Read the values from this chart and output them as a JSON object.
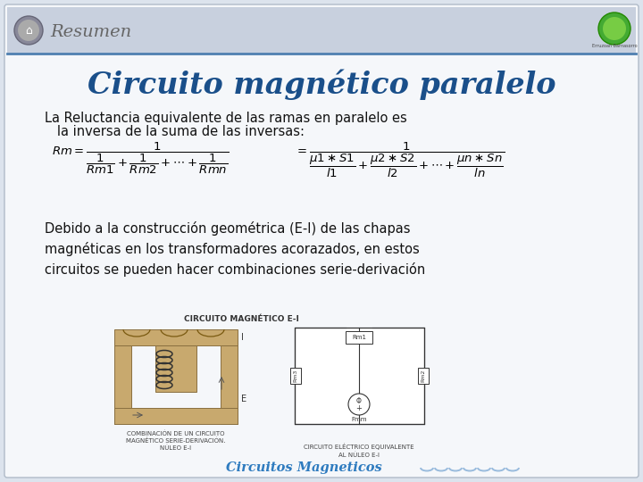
{
  "bg_color": "#dce3ed",
  "slide_bg": "#f5f7fa",
  "title": "Circuito magnético paralelo",
  "title_color": "#1a4f8a",
  "header_text": "Resumen",
  "header_color": "#666666",
  "text1_line1": "La Reluctancia equivalente de las ramas en paralelo es",
  "text1_line2": "   la inversa de la suma de las inversas:",
  "text_color": "#111111",
  "formula_color": "#000000",
  "text2": "Debido a la construcción geométrica (E-I) de las chapas\nmagnéticas en los transformadores acorazados, en estos\ncircuitos se pueden hacer combinaciones serie-derivación",
  "footer_text": "Circuitos Magneticos",
  "footer_color": "#2e7bbf",
  "diagram_title": "CIRCUITO MAGNÉTICO E-I",
  "caption_left": "COMBINACIÓN DE UN CIRCUITO\nMAGNÉTICO SERIE-DERIVACIÓN.\nNÚLEO E-I",
  "caption_right": "CIRCUITO ELÉCTRICO EQUIVALENTE\nAL NÚLEO E-I",
  "header_bg": "#c8d0de",
  "tan_color": "#c8a96e",
  "tan_edge": "#8a7040"
}
